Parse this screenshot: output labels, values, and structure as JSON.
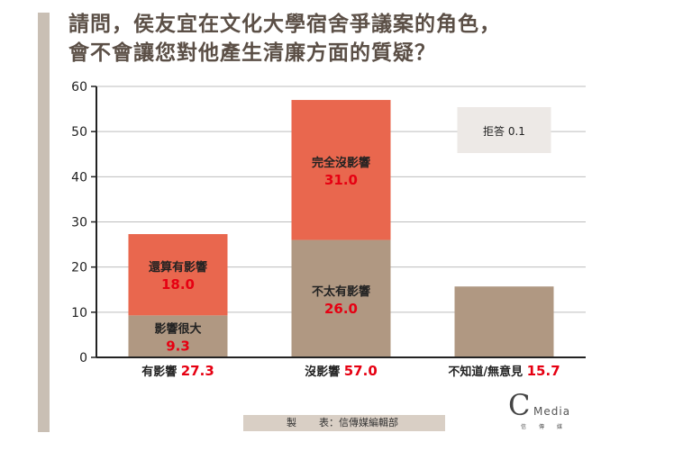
{
  "title_line1": "請問，侯友宜在文化大學宿舍爭議案的角色，",
  "title_line2": "會不會讓您對他產生清廉方面的質疑？",
  "credit": {
    "k1": "製",
    "k2": "表：信傳媒編輯部"
  },
  "logo": {
    "big": "C",
    "small": "Media",
    "sub": "信傳媒"
  },
  "colors": {
    "base": "#b09882",
    "top": "#e9674e",
    "value": "#e60012",
    "refuse_box": "#ede9e6",
    "side_bar": "#c9bfb4",
    "credit_bg": "#d9cfc5"
  },
  "chart_data": {
    "type": "bar",
    "stacked": true,
    "title": "請問，侯友宜在文化大學宿舍爭議案的角色，會不會讓您對他產生清廉方面的質疑？",
    "ylim": [
      0,
      60
    ],
    "yticks": [
      "0",
      "10",
      "20",
      "30",
      "40",
      "50",
      "60"
    ],
    "grid": true,
    "categories": [
      {
        "label": "有影響",
        "total": "27.3",
        "segments": [
          {
            "label": "影響很大",
            "value": 9.3,
            "value_text": "9.3",
            "layer": "base"
          },
          {
            "label": "還算有影響",
            "value": 18.0,
            "value_text": "18.0",
            "layer": "top"
          }
        ]
      },
      {
        "label": "沒影響",
        "total": "57.0",
        "segments": [
          {
            "label": "不太有影響",
            "value": 26.0,
            "value_text": "26.0",
            "layer": "base"
          },
          {
            "label": "完全沒影響",
            "value": 31.0,
            "value_text": "31.0",
            "layer": "top"
          }
        ]
      },
      {
        "label": "不知道/無意見",
        "total": "15.7",
        "segments": [
          {
            "label": "",
            "value": 15.7,
            "value_text": "",
            "layer": "base"
          }
        ]
      }
    ],
    "annotation": {
      "text": "拒答 0.1"
    }
  }
}
